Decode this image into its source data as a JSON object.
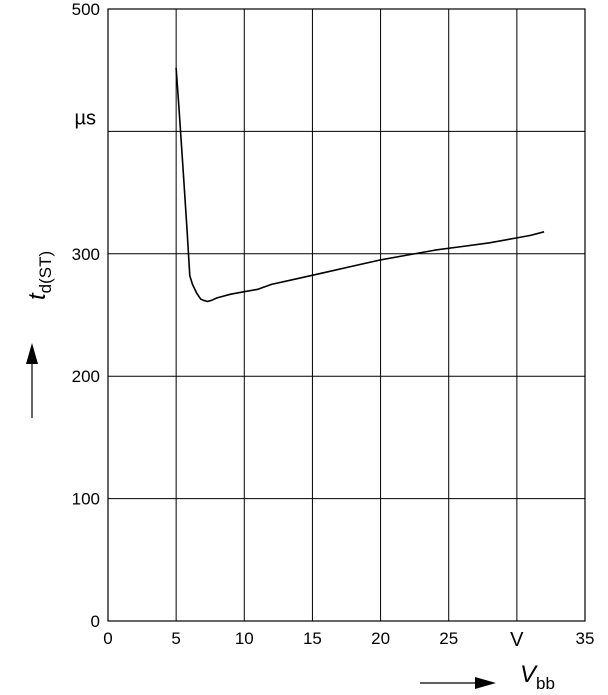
{
  "chart_data": {
    "type": "line",
    "x_axis": {
      "range": [
        0,
        35
      ],
      "ticks": [
        {
          "value": 0,
          "label": "0"
        },
        {
          "value": 5,
          "label": "5"
        },
        {
          "value": 10,
          "label": "10"
        },
        {
          "value": 15,
          "label": "15"
        },
        {
          "value": 20,
          "label": "20"
        },
        {
          "value": 25,
          "label": "25"
        },
        {
          "value": 35,
          "label": "35"
        }
      ],
      "unit": "V",
      "unit_at": 30,
      "symbol": "V",
      "subscript": "bb"
    },
    "y_axis": {
      "range": [
        0,
        500
      ],
      "ticks": [
        {
          "value": 0,
          "label": "0"
        },
        {
          "value": 100,
          "label": "100"
        },
        {
          "value": 200,
          "label": "200"
        },
        {
          "value": 300,
          "label": "300"
        },
        {
          "value": 500,
          "label": "500"
        }
      ],
      "unit": "µs",
      "unit_at": 400,
      "symbol": "t",
      "subscript": "d(ST)"
    },
    "grid": true,
    "series": [
      {
        "x": [
          5.0,
          5.2,
          5.5,
          5.8,
          6.0,
          6.2,
          6.5,
          6.8,
          7.0,
          7.3,
          7.6,
          8.0,
          9.0,
          10.0,
          11.0,
          12.0,
          14.0,
          16.0,
          18.0,
          20.0,
          22.0,
          24.0,
          26.0,
          28.0,
          30.0,
          31.0,
          32.0
        ],
        "y": [
          452,
          420,
          370,
          320,
          282,
          275,
          268,
          263,
          262,
          261,
          262,
          264,
          267,
          269,
          271,
          275,
          280,
          285,
          290,
          295,
          299,
          303,
          306,
          309,
          313,
          315,
          318
        ]
      }
    ]
  }
}
